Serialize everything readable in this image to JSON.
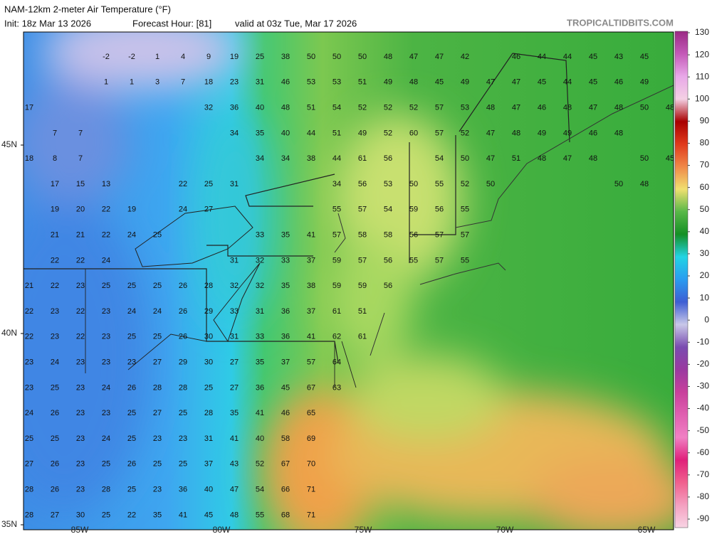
{
  "header": {
    "title": "NAM-12km 2-meter Air Temperature (°F)",
    "init": "Init: 18z Mar 13 2026",
    "forecast_hour": "Forecast Hour: [81]",
    "valid": "valid at 03z Tue, Mar 17 2026",
    "site": "TROPICALTIDBITS.COM"
  },
  "latitude_labels": [
    "45N",
    "40N",
    "35N"
  ],
  "longitude_labels": [
    "85W",
    "80W",
    "75W",
    "70W",
    "65W"
  ],
  "colorbar": {
    "ticks": [
      130,
      120,
      110,
      100,
      90,
      80,
      70,
      60,
      50,
      40,
      30,
      20,
      10,
      0,
      -10,
      -20,
      -30,
      -40,
      -50,
      -60,
      -70,
      -80,
      -90
    ],
    "colors": [
      "#9a2a84",
      "#c45ab8",
      "#e8a8e8",
      "#f4d0e4",
      "#a80000",
      "#e03a1c",
      "#f08848",
      "#f0e070",
      "#58b848",
      "#149024",
      "#22d4e4",
      "#2a9cf0",
      "#3e5ed4",
      "#c8c8e8",
      "#7a4cb0",
      "#9a3aa0",
      "#c8409c",
      "#e060b0",
      "#f080c4",
      "#e0207a",
      "#f0608e",
      "#f4a0c0",
      "#f8d4e4"
    ]
  },
  "temperatures": [
    [
      null,
      null,
      null,
      -2,
      -2,
      1,
      4,
      9,
      19,
      25,
      38,
      50,
      50,
      50,
      48,
      47,
      47,
      42,
      null,
      46,
      44,
      44,
      45,
      43,
      45
    ],
    [
      null,
      null,
      null,
      1,
      1,
      3,
      7,
      18,
      23,
      31,
      46,
      53,
      53,
      51,
      49,
      48,
      45,
      49,
      47,
      47,
      45,
      44,
      45,
      46,
      49
    ],
    [
      17,
      null,
      null,
      null,
      null,
      null,
      null,
      32,
      36,
      40,
      48,
      51,
      54,
      52,
      52,
      52,
      57,
      53,
      48,
      47,
      46,
      48,
      47,
      48,
      50,
      48
    ],
    [
      null,
      7,
      7,
      null,
      null,
      null,
      null,
      null,
      34,
      35,
      40,
      44,
      51,
      49,
      52,
      60,
      57,
      52,
      47,
      48,
      49,
      49,
      46,
      48
    ],
    [
      18,
      8,
      7,
      null,
      null,
      null,
      null,
      null,
      null,
      34,
      34,
      38,
      44,
      61,
      56,
      null,
      54,
      50,
      47,
      51,
      48,
      47,
      48,
      null,
      50,
      45
    ],
    [
      null,
      17,
      15,
      13,
      null,
      null,
      22,
      25,
      31,
      null,
      null,
      null,
      34,
      56,
      53,
      50,
      55,
      52,
      50,
      null,
      null,
      null,
      null,
      50,
      48
    ],
    [
      null,
      19,
      20,
      22,
      19,
      null,
      24,
      27,
      null,
      null,
      null,
      null,
      55,
      57,
      54,
      59,
      56,
      55
    ],
    [
      null,
      21,
      21,
      22,
      24,
      25,
      null,
      null,
      null,
      33,
      35,
      41,
      57,
      58,
      58,
      56,
      57,
      57
    ],
    [
      null,
      22,
      22,
      24,
      null,
      null,
      null,
      null,
      31,
      32,
      33,
      37,
      59,
      57,
      56,
      55,
      57,
      55
    ],
    [
      21,
      22,
      23,
      25,
      25,
      25,
      26,
      28,
      32,
      32,
      35,
      38,
      59,
      59,
      56
    ],
    [
      22,
      23,
      22,
      23,
      24,
      24,
      26,
      29,
      33,
      31,
      36,
      37,
      61,
      51
    ],
    [
      22,
      23,
      22,
      23,
      25,
      25,
      26,
      30,
      31,
      33,
      36,
      41,
      62,
      61
    ],
    [
      23,
      24,
      23,
      23,
      23,
      27,
      29,
      30,
      27,
      35,
      37,
      57,
      64
    ],
    [
      23,
      25,
      23,
      24,
      26,
      28,
      28,
      25,
      27,
      36,
      45,
      67,
      63
    ],
    [
      24,
      26,
      23,
      23,
      25,
      27,
      25,
      28,
      35,
      41,
      46,
      65
    ],
    [
      25,
      25,
      23,
      24,
      25,
      23,
      23,
      31,
      41,
      40,
      58,
      69
    ],
    [
      27,
      26,
      23,
      25,
      26,
      25,
      25,
      37,
      43,
      52,
      67,
      70
    ],
    [
      28,
      26,
      23,
      28,
      25,
      23,
      36,
      40,
      47,
      54,
      66,
      71
    ],
    [
      28,
      27,
      30,
      25,
      22,
      35,
      41,
      45,
      48,
      55,
      68,
      71
    ]
  ]
}
